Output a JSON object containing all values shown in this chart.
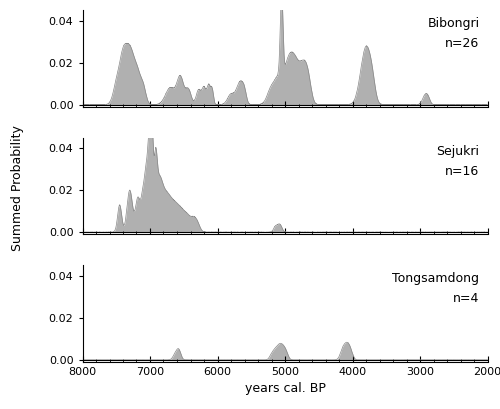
{
  "sites": [
    "Bibongri",
    "Sejukri",
    "Tongsamdong"
  ],
  "site_labels": [
    [
      "Bibongri",
      "n=26"
    ],
    [
      "Sejukri",
      "n=16"
    ],
    [
      "Tongsamdong",
      "n=4"
    ]
  ],
  "xlim_left": 8000,
  "xlim_right": 2000,
  "ylim": [
    0,
    0.045
  ],
  "yticks": [
    0.0,
    0.02,
    0.04
  ],
  "xticks": [
    8000,
    7000,
    6000,
    5000,
    4000,
    3000,
    2000
  ],
  "xlabel": "years cal. BP",
  "ylabel": "Summed Probability",
  "fill_color": "#b0b0b0",
  "edge_color": "#888888",
  "background_color": "#ffffff",
  "label_fontsize": 9,
  "axis_fontsize": 9,
  "tick_fontsize": 8,
  "bibongri_peaks": [
    7480,
    7400,
    7330,
    7260,
    7180,
    7100,
    6700,
    6550,
    6430,
    6280,
    6200,
    6130,
    6080,
    5800,
    5700,
    5650,
    5600,
    5200,
    5100,
    5050,
    4980,
    4930,
    4880,
    4820,
    4750,
    4700,
    4650,
    3850,
    3800,
    3750,
    3700,
    2930,
    2880
  ],
  "bibongri_widths": [
    55,
    45,
    50,
    50,
    45,
    40,
    70,
    50,
    40,
    35,
    30,
    25,
    20,
    50,
    40,
    35,
    30,
    60,
    50,
    20,
    60,
    70,
    60,
    55,
    50,
    50,
    45,
    65,
    55,
    50,
    45,
    35,
    30
  ],
  "bibongri_heights": [
    0.012,
    0.016,
    0.018,
    0.016,
    0.012,
    0.008,
    0.008,
    0.013,
    0.007,
    0.007,
    0.008,
    0.009,
    0.007,
    0.005,
    0.006,
    0.007,
    0.006,
    0.008,
    0.01,
    0.04,
    0.01,
    0.009,
    0.01,
    0.009,
    0.009,
    0.01,
    0.008,
    0.013,
    0.012,
    0.009,
    0.008,
    0.004,
    0.003
  ],
  "sejukri_peaks": [
    7450,
    7300,
    7180,
    7100,
    7050,
    7010,
    6970,
    6920,
    6870,
    6820,
    6750,
    6680,
    6600,
    6520,
    6440,
    6360,
    6300,
    5150,
    5100,
    5060
  ],
  "sejukri_widths": [
    30,
    40,
    35,
    30,
    25,
    20,
    18,
    25,
    40,
    50,
    55,
    60,
    55,
    50,
    45,
    40,
    40,
    25,
    30,
    25
  ],
  "sejukri_heights": [
    0.013,
    0.02,
    0.016,
    0.018,
    0.025,
    0.038,
    0.042,
    0.03,
    0.016,
    0.012,
    0.01,
    0.009,
    0.008,
    0.007,
    0.006,
    0.005,
    0.004,
    0.002,
    0.003,
    0.002
  ],
  "tongsamdong_peaks": [
    6620,
    6570,
    5200,
    5150,
    5100,
    5060,
    5020,
    4980,
    4150,
    4100,
    4060,
    4020
  ],
  "tongsamdong_widths": [
    35,
    30,
    30,
    35,
    40,
    35,
    30,
    30,
    35,
    35,
    30,
    30
  ],
  "tongsamdong_heights": [
    0.003,
    0.004,
    0.002,
    0.003,
    0.004,
    0.004,
    0.003,
    0.003,
    0.004,
    0.005,
    0.004,
    0.003
  ]
}
